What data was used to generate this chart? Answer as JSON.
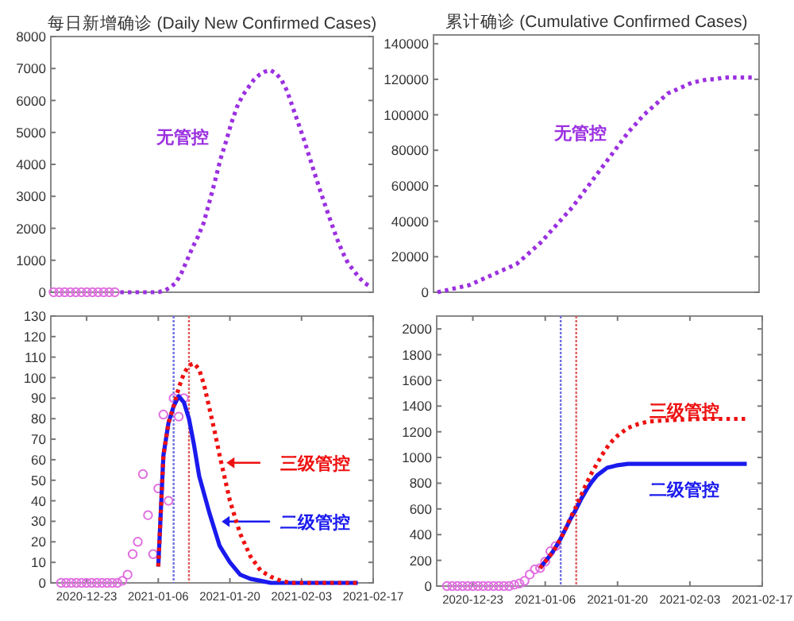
{
  "chart_data": [
    {
      "type": "line",
      "title": "每日新增确诊 (Daily New Confirmed Cases)",
      "tick_labels": "y",
      "categories": [
        null,
        null,
        null,
        null,
        null,
        null,
        null,
        null,
        null,
        null,
        null,
        null,
        null,
        null,
        null,
        null,
        null,
        null,
        null,
        null,
        null,
        null,
        null,
        null,
        null,
        null,
        null,
        null,
        null,
        null,
        null,
        null,
        null,
        null,
        null,
        null,
        null,
        null,
        null,
        null,
        null,
        null,
        null,
        null,
        null,
        null,
        null,
        null,
        null,
        null,
        null,
        null,
        null,
        null,
        null,
        null,
        null,
        null
      ],
      "ylim": [
        0,
        8000
      ],
      "yticks": [
        0,
        1000,
        2000,
        3000,
        4000,
        5000,
        6000,
        7000,
        8000
      ],
      "series": [
        {
          "type": "scatter",
          "marker": "circle",
          "color": "#e070e0",
          "values": [
            0,
            0,
            0,
            0,
            0,
            0,
            0,
            0,
            0,
            0,
            0,
            0,
            null,
            null,
            null,
            null,
            null,
            null,
            null,
            null,
            null,
            null,
            null,
            null,
            null,
            null,
            null,
            null,
            null,
            null,
            null,
            null,
            null,
            null,
            null,
            null,
            null,
            null,
            null,
            null,
            null,
            null,
            null,
            null,
            null,
            null,
            null,
            null,
            null,
            null,
            null,
            null,
            null,
            null,
            null,
            null,
            null,
            null
          ]
        },
        {
          "line_style": "dotted",
          "name": "无管控",
          "color": "#9b30e0",
          "values": [
            null,
            null,
            null,
            null,
            null,
            null,
            null,
            null,
            null,
            null,
            null,
            null,
            0,
            0,
            0,
            0,
            0,
            0,
            0,
            10,
            50,
            150,
            300,
            600,
            1000,
            1400,
            1750,
            2170,
            2800,
            3450,
            4150,
            4700,
            5300,
            5800,
            6150,
            6400,
            6640,
            6800,
            6900,
            6950,
            6850,
            6650,
            6300,
            5800,
            5300,
            4800,
            4250,
            3700,
            3160,
            2650,
            2150,
            1670,
            1250,
            900,
            680,
            450,
            280,
            180
          ]
        }
      ]
    },
    {
      "type": "line",
      "title": "累计确诊 (Cumulative Confirmed Cases)",
      "tick_labels": "y",
      "categories": [
        null,
        null,
        null,
        null,
        null,
        null,
        null,
        null,
        null,
        null,
        null,
        null,
        null,
        null,
        null,
        null,
        null,
        null,
        null,
        null,
        null,
        null,
        null,
        null,
        null,
        null,
        null,
        null,
        null,
        null,
        null,
        null,
        null,
        null,
        null,
        null,
        null,
        null,
        null,
        null,
        null
      ],
      "ylim": [
        0,
        145000
      ],
      "yticks": [
        0,
        20000,
        40000,
        60000,
        80000,
        100000,
        120000,
        140000
      ],
      "series": [
        {
          "line_style": "dotted",
          "name": "无管控",
          "color": "#9b30e0",
          "values": [
            0,
            1000,
            2000,
            3000,
            4000,
            6000,
            8000,
            10000,
            12000,
            14000,
            16000,
            20000,
            24000,
            28000,
            33000,
            38000,
            43000,
            48000,
            54000,
            60000,
            66000,
            72000,
            78000,
            84000,
            90000,
            95000,
            100000,
            104000,
            108000,
            112000,
            114000,
            116000,
            118000,
            119000,
            120000,
            120000,
            121000,
            121000,
            121000,
            121000,
            121000
          ]
        }
      ]
    },
    {
      "type": "line",
      "legend": "right",
      "xlim": [
        "2020-12-16",
        "2021-02-17"
      ],
      "xticks": [
        "2020-12-23",
        "2021-01-06",
        "2021-01-20",
        "2021-02-03",
        "2021-02-17"
      ],
      "ylim": [
        0,
        130
      ],
      "yticks": [
        0,
        10,
        20,
        30,
        40,
        50,
        60,
        70,
        80,
        90,
        100,
        110,
        120,
        130
      ],
      "ref_lines": [
        {
          "axis": "x",
          "value": "2021-01-09",
          "color": "#6f6fe0",
          "line_style": "dotted"
        },
        {
          "axis": "x",
          "value": "2021-01-12",
          "color": "#e06060",
          "line_style": "dotted"
        }
      ],
      "series": [
        {
          "type": "scatter",
          "marker": "circle",
          "color": "#e070e0",
          "x": [
            "2020-12-18",
            "2020-12-19",
            "2020-12-20",
            "2020-12-21",
            "2020-12-22",
            "2020-12-23",
            "2020-12-24",
            "2020-12-25",
            "2020-12-26",
            "2020-12-27",
            "2020-12-28",
            "2020-12-29",
            "2020-12-30",
            "2020-12-31",
            "2021-01-01",
            "2021-01-02",
            "2021-01-03",
            "2021-01-04",
            "2021-01-05",
            "2021-01-06",
            "2021-01-07",
            "2021-01-08",
            "2021-01-09",
            "2021-01-10",
            "2021-01-11"
          ],
          "values": [
            0,
            0,
            0,
            0,
            0,
            0,
            0,
            0,
            0,
            0,
            0,
            0,
            1,
            4,
            14,
            20,
            53,
            33,
            14,
            46,
            82,
            40,
            90,
            81,
            90
          ]
        },
        {
          "line_style": "solid",
          "name": "二级管控",
          "color": "#1a1aee",
          "x": [
            "2021-01-06",
            "2021-01-07",
            "2021-01-08",
            "2021-01-09",
            "2021-01-10",
            "2021-01-11",
            "2021-01-12",
            "2021-01-13",
            "2021-01-14",
            "2021-01-15",
            "2021-01-16",
            "2021-01-17",
            "2021-01-18",
            "2021-01-19",
            "2021-01-20",
            "2021-01-22",
            "2021-01-24",
            "2021-01-26",
            "2021-01-28",
            "2021-02-14"
          ],
          "values": [
            8,
            62,
            78,
            86,
            91,
            88,
            80,
            67,
            52,
            43,
            34,
            26,
            18,
            14,
            10,
            4,
            2,
            1,
            0,
            0
          ]
        },
        {
          "line_style": "dotted",
          "name": "三级管控",
          "color": "#ee1111",
          "x": [
            "2021-01-06",
            "2021-01-07",
            "2021-01-08",
            "2021-01-09",
            "2021-01-10",
            "2021-01-11",
            "2021-01-12",
            "2021-01-13",
            "2021-01-14",
            "2021-01-15",
            "2021-01-16",
            "2021-01-17",
            "2021-01-18",
            "2021-01-19",
            "2021-01-20",
            "2021-01-22",
            "2021-01-24",
            "2021-01-26",
            "2021-01-28",
            "2021-01-30",
            "2021-02-01",
            "2021-02-07",
            "2021-02-14"
          ],
          "values": [
            8,
            62,
            78,
            86,
            95,
            102,
            106,
            107,
            104,
            96,
            85,
            74,
            62,
            51,
            40,
            24,
            13,
            6,
            3,
            1,
            0,
            0,
            0
          ]
        }
      ]
    },
    {
      "type": "line",
      "legend": "right",
      "xlim": [
        "2020-12-16",
        "2021-02-17"
      ],
      "xticks": [
        "2020-12-23",
        "2021-01-06",
        "2021-01-20",
        "2021-02-03",
        "2021-02-17"
      ],
      "ylim": [
        0,
        2100
      ],
      "yticks": [
        0,
        200,
        400,
        600,
        800,
        1000,
        1200,
        1400,
        1600,
        1800,
        2000
      ],
      "ref_lines": [
        {
          "axis": "x",
          "value": "2021-01-09",
          "color": "#6f6fe0",
          "line_style": "dotted"
        },
        {
          "axis": "x",
          "value": "2021-01-12",
          "color": "#e06060",
          "line_style": "dotted"
        }
      ],
      "series": [
        {
          "type": "scatter",
          "marker": "circle",
          "color": "#e070e0",
          "x": [
            "2020-12-18",
            "2020-12-19",
            "2020-12-20",
            "2020-12-21",
            "2020-12-22",
            "2020-12-23",
            "2020-12-24",
            "2020-12-25",
            "2020-12-26",
            "2020-12-27",
            "2020-12-28",
            "2020-12-29",
            "2020-12-30",
            "2020-12-31",
            "2021-01-01",
            "2021-01-02",
            "2021-01-03",
            "2021-01-04",
            "2021-01-05",
            "2021-01-06",
            "2021-01-07",
            "2021-01-08"
          ],
          "values": [
            0,
            0,
            0,
            0,
            0,
            0,
            0,
            0,
            0,
            0,
            0,
            0,
            0,
            10,
            20,
            40,
            90,
            130,
            140,
            190,
            270,
            310
          ]
        },
        {
          "line_style": "solid",
          "name": "二级管控",
          "color": "#1a1aee",
          "x": [
            "2021-01-05",
            "2021-01-06",
            "2021-01-07",
            "2021-01-08",
            "2021-01-09",
            "2021-01-10",
            "2021-01-11",
            "2021-01-12",
            "2021-01-13",
            "2021-01-14",
            "2021-01-15",
            "2021-01-16",
            "2021-01-17",
            "2021-01-18",
            "2021-01-19",
            "2021-01-20",
            "2021-01-22",
            "2021-01-26",
            "2021-02-14"
          ],
          "values": [
            140,
            190,
            240,
            300,
            370,
            450,
            530,
            600,
            680,
            750,
            810,
            860,
            890,
            920,
            930,
            940,
            950,
            950,
            950
          ]
        },
        {
          "line_style": "dotted",
          "name": "三级管控",
          "color": "#ee1111",
          "x": [
            "2021-01-05",
            "2021-01-06",
            "2021-01-07",
            "2021-01-08",
            "2021-01-09",
            "2021-01-10",
            "2021-01-11",
            "2021-01-12",
            "2021-01-13",
            "2021-01-14",
            "2021-01-15",
            "2021-01-16",
            "2021-01-17",
            "2021-01-18",
            "2021-01-19",
            "2021-01-20",
            "2021-01-22",
            "2021-01-24",
            "2021-01-26",
            "2021-01-30",
            "2021-02-05",
            "2021-02-14"
          ],
          "values": [
            140,
            190,
            240,
            300,
            370,
            450,
            540,
            620,
            710,
            800,
            880,
            950,
            1020,
            1080,
            1130,
            1170,
            1230,
            1260,
            1280,
            1290,
            1300,
            1300
          ]
        }
      ]
    }
  ]
}
